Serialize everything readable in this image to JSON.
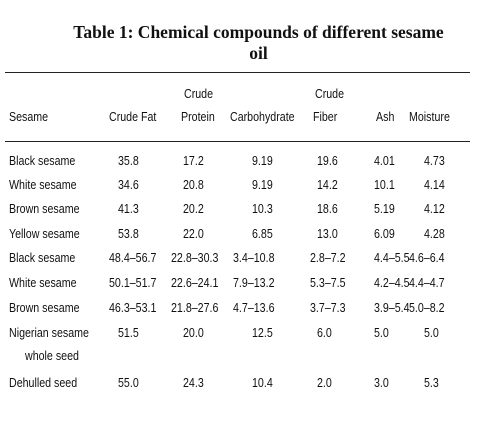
{
  "title": {
    "line1": "Table 1: Chemical compounds of different sesame",
    "line2": "oil"
  },
  "table": {
    "headers": [
      {
        "line1": "",
        "line2": "Sesame"
      },
      {
        "line1": "",
        "line2": "Crude Fat"
      },
      {
        "line1": "Crude",
        "line2": "Protein"
      },
      {
        "line1": "",
        "line2": "Carbohydrate"
      },
      {
        "line1": "Crude",
        "line2": "Fiber"
      },
      {
        "line1": "",
        "line2": "Ash"
      },
      {
        "line1": "",
        "line2": "Moisture"
      }
    ],
    "rows": [
      {
        "sesame": "Black sesame",
        "fat": "35.8",
        "protein": "17.2",
        "carb": "9.19",
        "fiber": "19.6",
        "ash": "4.01",
        "moisture": "4.73"
      },
      {
        "sesame": "White sesame",
        "fat": "34.6",
        "protein": "20.8",
        "carb": "9.19",
        "fiber": "14.2",
        "ash": "10.1",
        "moisture": "4.14"
      },
      {
        "sesame": "Brown sesame",
        "fat": "41.3",
        "protein": "20.2",
        "carb": "10.3",
        "fiber": "18.6",
        "ash": "5.19",
        "moisture": "4.12"
      },
      {
        "sesame": "Yellow sesame",
        "fat": "53.8",
        "protein": "22.0",
        "carb": "6.85",
        "fiber": "13.0",
        "ash": "6.09",
        "moisture": "4.28"
      },
      {
        "sesame": "Black sesame",
        "fat": "48.4–56.7",
        "protein": "22.8–30.3",
        "carb": "3.4–10.8",
        "fiber": "2.8–7.2",
        "ash": "4.4–5.5",
        "moisture": "4.6–6.4"
      },
      {
        "sesame": "White sesame",
        "fat": "50.1–51.7",
        "protein": "22.6–24.1",
        "carb": "7.9–13.2",
        "fiber": "5.3–7.5",
        "ash": "4.2–4.5",
        "moisture": "4.4–4.7"
      },
      {
        "sesame": "Brown sesame",
        "fat": "46.3–53.1",
        "protein": "21.8–27.6",
        "carb": "4.7–13.6",
        "fiber": "3.7–7.3",
        "ash": "3.9–5.4",
        "moisture": "5.0–8.2"
      },
      {
        "sesame": "Nigerian sesame",
        "sesame2": "whole seed",
        "fat": "51.5",
        "protein": "20.0",
        "carb": "12.5",
        "fiber": "6.0",
        "ash": "5.0",
        "moisture": "5.0"
      },
      {
        "sesame": "Dehulled seed",
        "fat": "55.0",
        "protein": "24.3",
        "carb": "10.4",
        "fiber": "2.0",
        "ash": "3.0",
        "moisture": "5.3"
      }
    ]
  }
}
